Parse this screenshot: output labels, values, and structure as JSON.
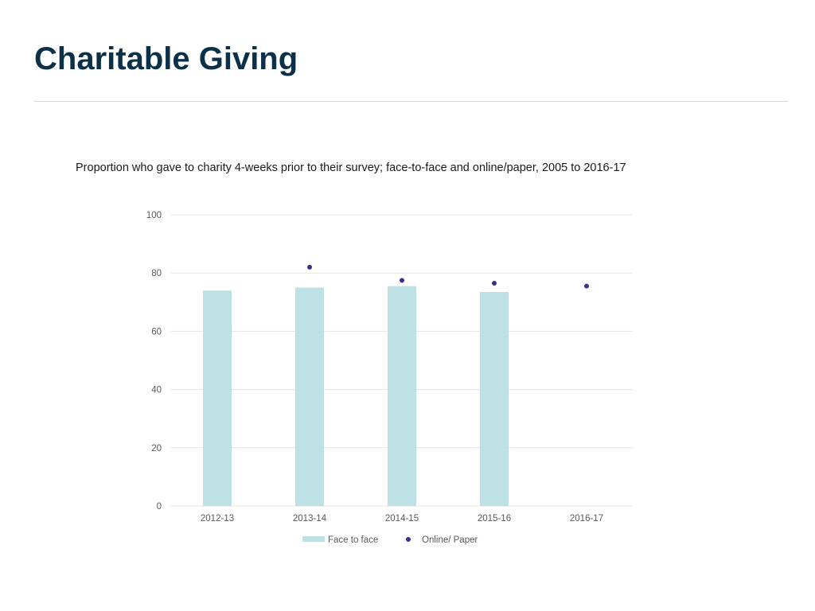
{
  "slide": {
    "title": "Charitable Giving"
  },
  "chart_data": {
    "type": "bar",
    "caption": "Proportion who gave to charity 4-weeks prior to their survey; face-to-face and online/paper, 2005 to 2016-17",
    "categories": [
      "2012-13",
      "2013-14",
      "2014-15",
      "2015-16",
      "2016-17"
    ],
    "series": [
      {
        "name": "Face to face",
        "kind": "bar",
        "color": "#bde1e4",
        "values": [
          74,
          75,
          75.5,
          73.5,
          null
        ]
      },
      {
        "name": "Online/ Paper",
        "kind": "point",
        "color": "#3d2f8a",
        "values": [
          null,
          82,
          77.5,
          76.5,
          75.5
        ]
      }
    ],
    "yticks": [
      "0",
      "20",
      "40",
      "60",
      "80",
      "100"
    ],
    "ylim": [
      0,
      100
    ],
    "xlabel": "",
    "ylabel": "",
    "grid": true,
    "legend": "bottom-center"
  },
  "colors": {
    "title": "#0d3049",
    "rule": "#d6e3a2",
    "gridline": "#e3e3e3",
    "axis_text": "#595959"
  }
}
